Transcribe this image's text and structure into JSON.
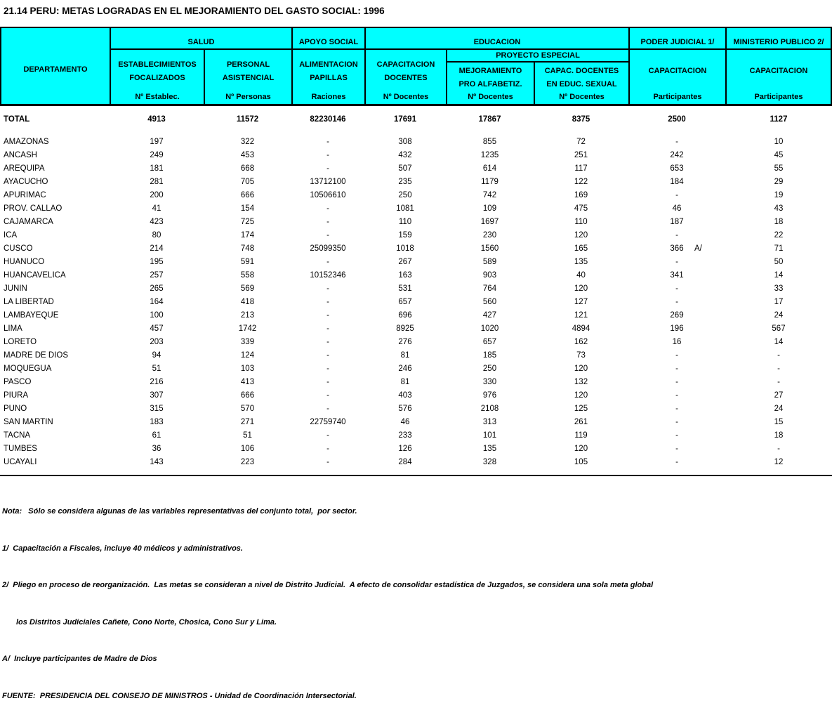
{
  "title": "21.14 PERU: METAS LOGRADAS EN EL MEJORAMIENTO DEL GASTO SOCIAL: 1996",
  "colors": {
    "header_bg": "#00ffff",
    "border": "#000000",
    "page_bg": "#ffffff"
  },
  "header": {
    "departamento": "DEPARTAMENTO",
    "groups": [
      {
        "label": "SALUD",
        "cols": [
          {
            "line1": "ESTABLECIMIENTOS",
            "line2": "FOCALIZADOS",
            "unit": "Nº Establec."
          },
          {
            "line1": "PERSONAL",
            "line2": "ASISTENCIAL",
            "unit": "Nº Personas"
          }
        ]
      },
      {
        "label": "APOYO SOCIAL",
        "cols": [
          {
            "line1": "ALIMENTACION",
            "line2": "PAPILLAS",
            "unit": "Raciones"
          }
        ]
      },
      {
        "label": "EDUCACION",
        "cols": [
          {
            "line1": "CAPACITACION",
            "line2": "DOCENTES",
            "unit": "Nº Docentes"
          }
        ],
        "subgroup": {
          "label": "PROYECTO ESPECIAL",
          "cols": [
            {
              "line1": "MEJORAMIENTO",
              "line2": "PRO ALFABETIZ.",
              "unit": "Nº Docentes"
            },
            {
              "line1": "CAPAC. DOCENTES",
              "line2": "EN EDUC. SEXUAL",
              "unit": "Nº Docentes"
            }
          ]
        }
      },
      {
        "label": "PODER JUDICIAL 1/",
        "cols": [
          {
            "line1": "CAPACITACION",
            "line2": "",
            "unit": "Participantes"
          }
        ]
      },
      {
        "label": "MINISTERIO PUBLICO 2/",
        "cols": [
          {
            "line1": "CAPACITACION",
            "line2": "",
            "unit": "Participantes"
          }
        ]
      }
    ]
  },
  "table": {
    "rows": [
      {
        "name": "TOTAL",
        "bold": true,
        "values": [
          "4913",
          "11572",
          "82230146",
          "17691",
          "17867",
          "8375",
          "2500",
          "1127"
        ]
      },
      {
        "name": "AMAZONAS",
        "values": [
          "197",
          "322",
          "-",
          "308",
          "855",
          "72",
          "-",
          "10"
        ]
      },
      {
        "name": "ANCASH",
        "values": [
          "249",
          "453",
          "-",
          "432",
          "1235",
          "251",
          "242",
          "45"
        ]
      },
      {
        "name": "AREQUIPA",
        "values": [
          "181",
          "668",
          "-",
          "507",
          "614",
          "117",
          "653",
          "55"
        ]
      },
      {
        "name": "AYACUCHO",
        "values": [
          "281",
          "705",
          "13712100",
          "235",
          "1179",
          "122",
          "184",
          "29"
        ]
      },
      {
        "name": "APURIMAC",
        "values": [
          "200",
          "666",
          "10506610",
          "250",
          "742",
          "169",
          "-",
          "19"
        ]
      },
      {
        "name": "PROV. CALLAO",
        "values": [
          "41",
          "154",
          "-",
          "1081",
          "109",
          "475",
          "46",
          "43"
        ]
      },
      {
        "name": "CAJAMARCA",
        "values": [
          "423",
          "725",
          "-",
          "110",
          "1697",
          "110",
          "187",
          "18"
        ]
      },
      {
        "name": "ICA",
        "values": [
          "80",
          "174",
          "-",
          "159",
          "230",
          "120",
          "-",
          "22"
        ]
      },
      {
        "name": "CUSCO",
        "values": [
          "214",
          "748",
          "25099350",
          "1018",
          "1560",
          "165",
          "366",
          "71"
        ],
        "flag": "A/",
        "flag_col": 6
      },
      {
        "name": "HUANUCO",
        "values": [
          "195",
          "591",
          "-",
          "267",
          "589",
          "135",
          "-",
          "50"
        ]
      },
      {
        "name": "HUANCAVELICA",
        "values": [
          "257",
          "558",
          "10152346",
          "163",
          "903",
          "40",
          "341",
          "14"
        ]
      },
      {
        "name": "JUNIN",
        "values": [
          "265",
          "569",
          "-",
          "531",
          "764",
          "120",
          "-",
          "33"
        ]
      },
      {
        "name": "LA LIBERTAD",
        "values": [
          "164",
          "418",
          "-",
          "657",
          "560",
          "127",
          "-",
          "17"
        ]
      },
      {
        "name": "LAMBAYEQUE",
        "values": [
          "100",
          "213",
          "-",
          "696",
          "427",
          "121",
          "269",
          "24"
        ]
      },
      {
        "name": "LIMA",
        "values": [
          "457",
          "1742",
          "-",
          "8925",
          "1020",
          "4894",
          "196",
          "567"
        ]
      },
      {
        "name": "LORETO",
        "values": [
          "203",
          "339",
          "-",
          "276",
          "657",
          "162",
          "16",
          "14"
        ]
      },
      {
        "name": "MADRE DE DIOS",
        "values": [
          "94",
          "124",
          "-",
          "81",
          "185",
          "73",
          "-",
          "-"
        ]
      },
      {
        "name": "MOQUEGUA",
        "values": [
          "51",
          "103",
          "-",
          "246",
          "250",
          "120",
          "-",
          "-"
        ]
      },
      {
        "name": "PASCO",
        "values": [
          "216",
          "413",
          "-",
          "81",
          "330",
          "132",
          "-",
          "-"
        ]
      },
      {
        "name": "PIURA",
        "values": [
          "307",
          "666",
          "-",
          "403",
          "976",
          "120",
          "-",
          "27"
        ]
      },
      {
        "name": "PUNO",
        "values": [
          "315",
          "570",
          "-",
          "576",
          "2108",
          "125",
          "-",
          "24"
        ]
      },
      {
        "name": "SAN MARTIN",
        "values": [
          "183",
          "271",
          "22759740",
          "46",
          "313",
          "261",
          "-",
          "15"
        ]
      },
      {
        "name": "TACNA",
        "values": [
          "61",
          "51",
          "-",
          "233",
          "101",
          "119",
          "-",
          "18"
        ]
      },
      {
        "name": "TUMBES",
        "values": [
          "36",
          "106",
          "-",
          "126",
          "135",
          "120",
          "-",
          "-"
        ]
      },
      {
        "name": "UCAYALI",
        "values": [
          "143",
          "223",
          "-",
          "284",
          "328",
          "105",
          "-",
          "12"
        ]
      }
    ]
  },
  "notes": [
    {
      "text": "Nota:   Sólo se considera algunas de las variables representativas del conjunto total,  por sector.",
      "indent": false
    },
    {
      "text": "1/  Capacitación a Fiscales, incluye 40 médicos y administrativos.",
      "indent": false
    },
    {
      "text": "2/  Pliego en proceso de reorganización.  Las metas se consideran a nivel de Distrito Judicial.  A efecto de consolidar estadística de Juzgados, se considera una sola meta global",
      "indent": false
    },
    {
      "text": "los Distritos Judiciales Cañete, Cono Norte, Chosica, Cono Sur y Lima.",
      "indent": true
    },
    {
      "text": "A/  Incluye participantes de Madre de Dios",
      "indent": false
    },
    {
      "text": "FUENTE:  PRESIDENCIA DEL CONSEJO DE MINISTROS - Unidad de Coordinación Intersectorial.",
      "indent": false
    }
  ]
}
